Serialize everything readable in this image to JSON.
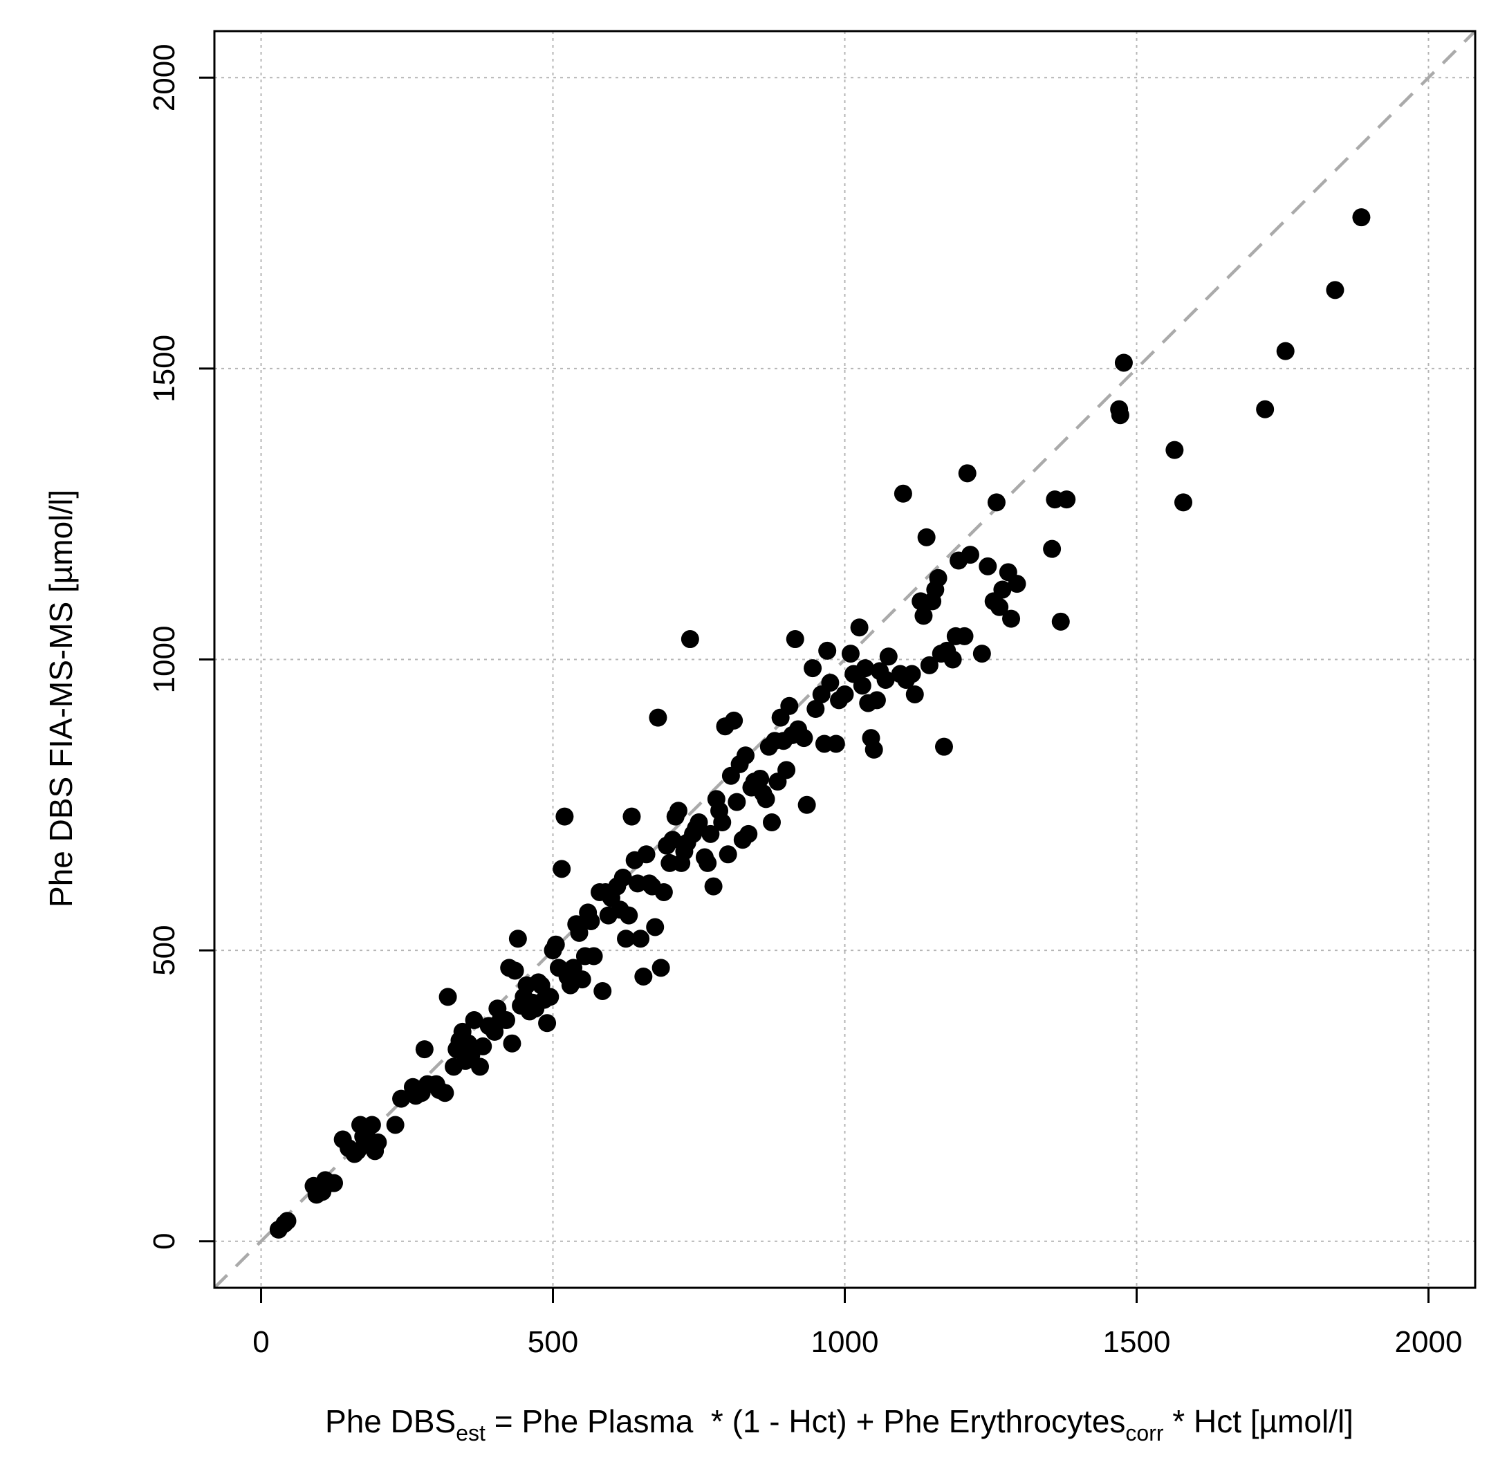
{
  "chart_data": {
    "type": "scatter",
    "xlabel": {
      "parts": [
        {
          "text": "Phe DBS",
          "sub": false
        },
        {
          "text": "est",
          "sub": true
        },
        {
          "text": " = Phe Plasma  * (1 - Hct) + Phe Erythrocytes",
          "sub": false
        },
        {
          "text": "corr",
          "sub": true
        },
        {
          "text": " * Hct [µmol/l]",
          "sub": false
        }
      ]
    },
    "ylabel": "Phe DBS FIA-MS-MS [µmol/l]",
    "xlim": [
      -80,
      2080
    ],
    "ylim": [
      -80,
      2080
    ],
    "xticks": [
      0,
      500,
      1000,
      1500,
      2000
    ],
    "yticks": [
      0,
      500,
      1000,
      1500,
      2000
    ],
    "grid": true,
    "reference_line": {
      "slope": 1,
      "intercept": 0,
      "style": "dashed",
      "color": "#aaaaaa"
    },
    "marker_color": "#000000",
    "series": [
      {
        "points": [
          [
            30,
            20
          ],
          [
            40,
            30
          ],
          [
            45,
            35
          ],
          [
            90,
            95
          ],
          [
            95,
            80
          ],
          [
            100,
            90
          ],
          [
            105,
            85
          ],
          [
            110,
            105
          ],
          [
            120,
            100
          ],
          [
            125,
            100
          ],
          [
            140,
            175
          ],
          [
            150,
            160
          ],
          [
            160,
            150
          ],
          [
            165,
            155
          ],
          [
            170,
            200
          ],
          [
            175,
            180
          ],
          [
            180,
            185
          ],
          [
            185,
            165
          ],
          [
            190,
            200
          ],
          [
            195,
            155
          ],
          [
            200,
            170
          ],
          [
            230,
            200
          ],
          [
            240,
            245
          ],
          [
            260,
            265
          ],
          [
            265,
            250
          ],
          [
            275,
            255
          ],
          [
            280,
            330
          ],
          [
            285,
            270
          ],
          [
            300,
            270
          ],
          [
            305,
            260
          ],
          [
            315,
            255
          ],
          [
            320,
            420
          ],
          [
            330,
            300
          ],
          [
            335,
            330
          ],
          [
            340,
            345
          ],
          [
            345,
            360
          ],
          [
            350,
            310
          ],
          [
            355,
            340
          ],
          [
            360,
            320
          ],
          [
            365,
            380
          ],
          [
            375,
            300
          ],
          [
            380,
            335
          ],
          [
            390,
            370
          ],
          [
            400,
            360
          ],
          [
            405,
            400
          ],
          [
            410,
            380
          ],
          [
            420,
            380
          ],
          [
            425,
            470
          ],
          [
            430,
            340
          ],
          [
            435,
            465
          ],
          [
            440,
            520
          ],
          [
            445,
            405
          ],
          [
            450,
            420
          ],
          [
            455,
            440
          ],
          [
            460,
            395
          ],
          [
            465,
            410
          ],
          [
            470,
            400
          ],
          [
            475,
            445
          ],
          [
            480,
            440
          ],
          [
            485,
            415
          ],
          [
            490,
            375
          ],
          [
            495,
            420
          ],
          [
            500,
            500
          ],
          [
            505,
            510
          ],
          [
            510,
            470
          ],
          [
            515,
            640
          ],
          [
            520,
            730
          ],
          [
            525,
            455
          ],
          [
            530,
            440
          ],
          [
            535,
            470
          ],
          [
            540,
            545
          ],
          [
            545,
            530
          ],
          [
            550,
            450
          ],
          [
            555,
            490
          ],
          [
            560,
            565
          ],
          [
            565,
            550
          ],
          [
            570,
            490
          ],
          [
            580,
            600
          ],
          [
            585,
            430
          ],
          [
            590,
            600
          ],
          [
            595,
            560
          ],
          [
            600,
            590
          ],
          [
            610,
            610
          ],
          [
            615,
            570
          ],
          [
            620,
            625
          ],
          [
            625,
            520
          ],
          [
            630,
            560
          ],
          [
            635,
            730
          ],
          [
            640,
            655
          ],
          [
            645,
            615
          ],
          [
            650,
            520
          ],
          [
            655,
            455
          ],
          [
            660,
            665
          ],
          [
            665,
            615
          ],
          [
            670,
            610
          ],
          [
            675,
            540
          ],
          [
            680,
            900
          ],
          [
            685,
            470
          ],
          [
            690,
            600
          ],
          [
            695,
            680
          ],
          [
            700,
            650
          ],
          [
            705,
            690
          ],
          [
            710,
            730
          ],
          [
            715,
            740
          ],
          [
            720,
            650
          ],
          [
            725,
            670
          ],
          [
            730,
            685
          ],
          [
            735,
            1035
          ],
          [
            740,
            700
          ],
          [
            745,
            710
          ],
          [
            750,
            720
          ],
          [
            760,
            660
          ],
          [
            765,
            650
          ],
          [
            770,
            700
          ],
          [
            775,
            610
          ],
          [
            780,
            760
          ],
          [
            785,
            740
          ],
          [
            790,
            720
          ],
          [
            795,
            885
          ],
          [
            800,
            665
          ],
          [
            805,
            800
          ],
          [
            810,
            895
          ],
          [
            815,
            755
          ],
          [
            820,
            820
          ],
          [
            825,
            690
          ],
          [
            830,
            835
          ],
          [
            835,
            700
          ],
          [
            840,
            780
          ],
          [
            845,
            790
          ],
          [
            855,
            795
          ],
          [
            860,
            770
          ],
          [
            865,
            760
          ],
          [
            870,
            850
          ],
          [
            875,
            720
          ],
          [
            880,
            860
          ],
          [
            885,
            790
          ],
          [
            890,
            900
          ],
          [
            895,
            860
          ],
          [
            900,
            810
          ],
          [
            905,
            920
          ],
          [
            910,
            870
          ],
          [
            915,
            1035
          ],
          [
            920,
            880
          ],
          [
            930,
            865
          ],
          [
            935,
            750
          ],
          [
            945,
            985
          ],
          [
            950,
            915
          ],
          [
            960,
            940
          ],
          [
            965,
            855
          ],
          [
            970,
            1015
          ],
          [
            975,
            960
          ],
          [
            985,
            855
          ],
          [
            990,
            930
          ],
          [
            1000,
            940
          ],
          [
            1010,
            1010
          ],
          [
            1015,
            975
          ],
          [
            1025,
            1055
          ],
          [
            1030,
            955
          ],
          [
            1035,
            985
          ],
          [
            1040,
            925
          ],
          [
            1045,
            865
          ],
          [
            1050,
            845
          ],
          [
            1055,
            930
          ],
          [
            1060,
            980
          ],
          [
            1070,
            965
          ],
          [
            1075,
            1005
          ],
          [
            1095,
            975
          ],
          [
            1100,
            1285
          ],
          [
            1105,
            965
          ],
          [
            1115,
            975
          ],
          [
            1120,
            940
          ],
          [
            1130,
            1100
          ],
          [
            1135,
            1075
          ],
          [
            1140,
            1210
          ],
          [
            1145,
            990
          ],
          [
            1150,
            1100
          ],
          [
            1155,
            1120
          ],
          [
            1160,
            1140
          ],
          [
            1165,
            1010
          ],
          [
            1170,
            850
          ],
          [
            1175,
            1015
          ],
          [
            1185,
            1000
          ],
          [
            1190,
            1040
          ],
          [
            1195,
            1170
          ],
          [
            1205,
            1040
          ],
          [
            1210,
            1320
          ],
          [
            1215,
            1180
          ],
          [
            1235,
            1010
          ],
          [
            1245,
            1160
          ],
          [
            1255,
            1100
          ],
          [
            1260,
            1270
          ],
          [
            1265,
            1090
          ],
          [
            1270,
            1120
          ],
          [
            1280,
            1150
          ],
          [
            1285,
            1070
          ],
          [
            1295,
            1130
          ],
          [
            1355,
            1190
          ],
          [
            1360,
            1275
          ],
          [
            1370,
            1065
          ],
          [
            1380,
            1275
          ],
          [
            1470,
            1430
          ],
          [
            1472,
            1420
          ],
          [
            1478,
            1510
          ],
          [
            1565,
            1360
          ],
          [
            1580,
            1270
          ],
          [
            1720,
            1430
          ],
          [
            1755,
            1530
          ],
          [
            1840,
            1635
          ],
          [
            1885,
            1760
          ]
        ]
      }
    ]
  }
}
